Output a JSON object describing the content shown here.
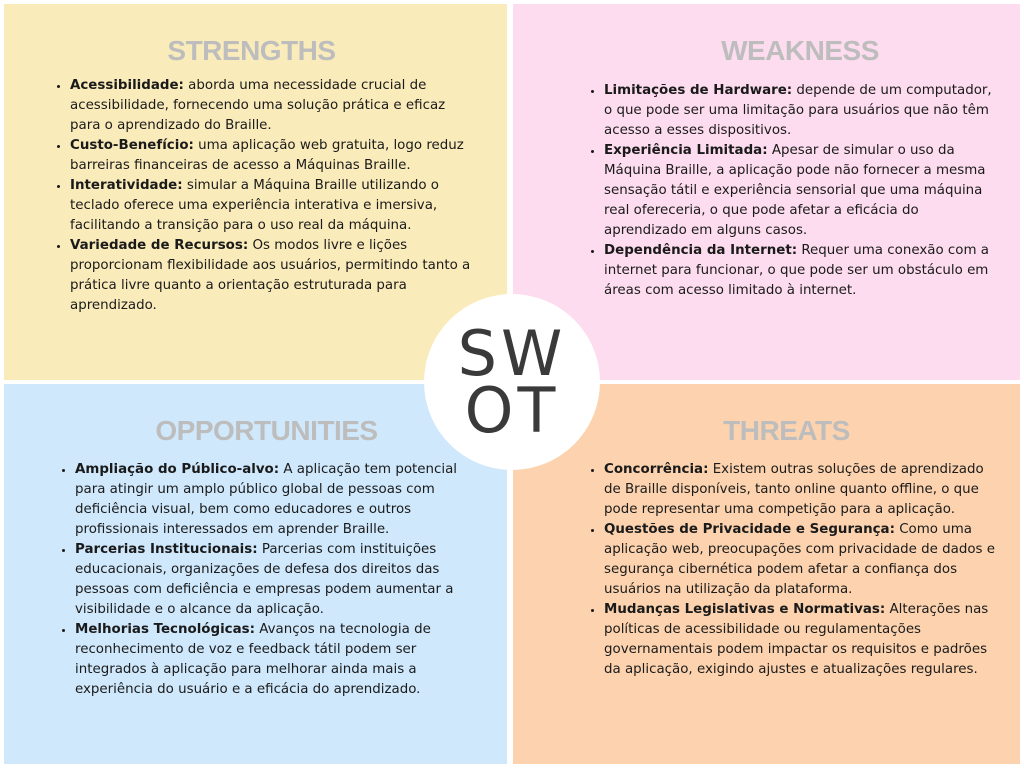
{
  "center": {
    "line1": "SW",
    "line2": "OT"
  },
  "strengths": {
    "title": "STRENGTHS",
    "items": [
      {
        "label": "Acessibilidade:",
        "text": " aborda uma necessidade crucial de acessibilidade, fornecendo uma solução prática e eficaz para o aprendizado do Braille."
      },
      {
        "label": "Custo-Benefício:",
        "text": " uma aplicação web gratuita, logo reduz barreiras financeiras de acesso a Máquinas Braille."
      },
      {
        "label": "Interatividade:",
        "text": " simular a Máquina Braille utilizando o teclado oferece uma experiência interativa e imersiva, facilitando a transição para o uso real da máquina."
      },
      {
        "label": "Variedade de Recursos:",
        "text": " Os modos livre e lições proporcionam flexibilidade aos usuários, permitindo tanto a prática livre quanto a orientação estruturada para aprendizado."
      }
    ]
  },
  "weakness": {
    "title": "WEAKNESS",
    "items": [
      {
        "label": "Limitações de Hardware:",
        "text": " depende de um computador, o que pode ser uma limitação para usuários que não têm acesso a esses dispositivos."
      },
      {
        "label": "Experiência Limitada:",
        "text": " Apesar de simular o uso da Máquina Braille, a aplicação pode não fornecer a mesma sensação tátil e experiência sensorial que uma máquina real ofereceria, o que pode afetar a eficácia do aprendizado em alguns casos."
      },
      {
        "label": "Dependência da Internet:",
        "text": " Requer uma conexão com a internet para funcionar, o que pode ser um obstáculo em áreas com acesso limitado à internet."
      }
    ]
  },
  "opportunities": {
    "title": "OPPORTUNITIES",
    "items": [
      {
        "label": "Ampliação do Público-alvo:",
        "text": " A aplicação tem potencial para atingir um amplo público global de pessoas com deficiência visual, bem como educadores e outros profissionais interessados em aprender Braille."
      },
      {
        "label": "Parcerias Institucionais:",
        "text": " Parcerias com instituições educacionais, organizações de defesa dos direitos das pessoas com deficiência e empresas podem aumentar a visibilidade e o alcance da aplicação."
      },
      {
        "label": "Melhorias Tecnológicas:",
        "text": " Avanços na tecnologia de reconhecimento de voz e feedback tátil podem ser integrados à aplicação para melhorar ainda mais a experiência do usuário e a eficácia do aprendizado."
      }
    ]
  },
  "threats": {
    "title": "THREATS",
    "items": [
      {
        "label": "Concorrência:",
        "text": " Existem outras soluções de aprendizado de Braille disponíveis, tanto online quanto offline, o que pode representar uma competição para a aplicação."
      },
      {
        "label": "Questões de Privacidade e Segurança:",
        "text": " Como uma aplicação web, preocupações com privacidade de dados e segurança cibernética podem afetar a confiança dos usuários na utilização da plataforma."
      },
      {
        "label": "Mudanças Legislativas e Normativas:",
        "text": " Alterações nas políticas de acessibilidade ou regulamentações governamentais podem impactar os requisitos e padrões da aplicação, exigindo ajustes e atualizações regulares."
      }
    ]
  }
}
